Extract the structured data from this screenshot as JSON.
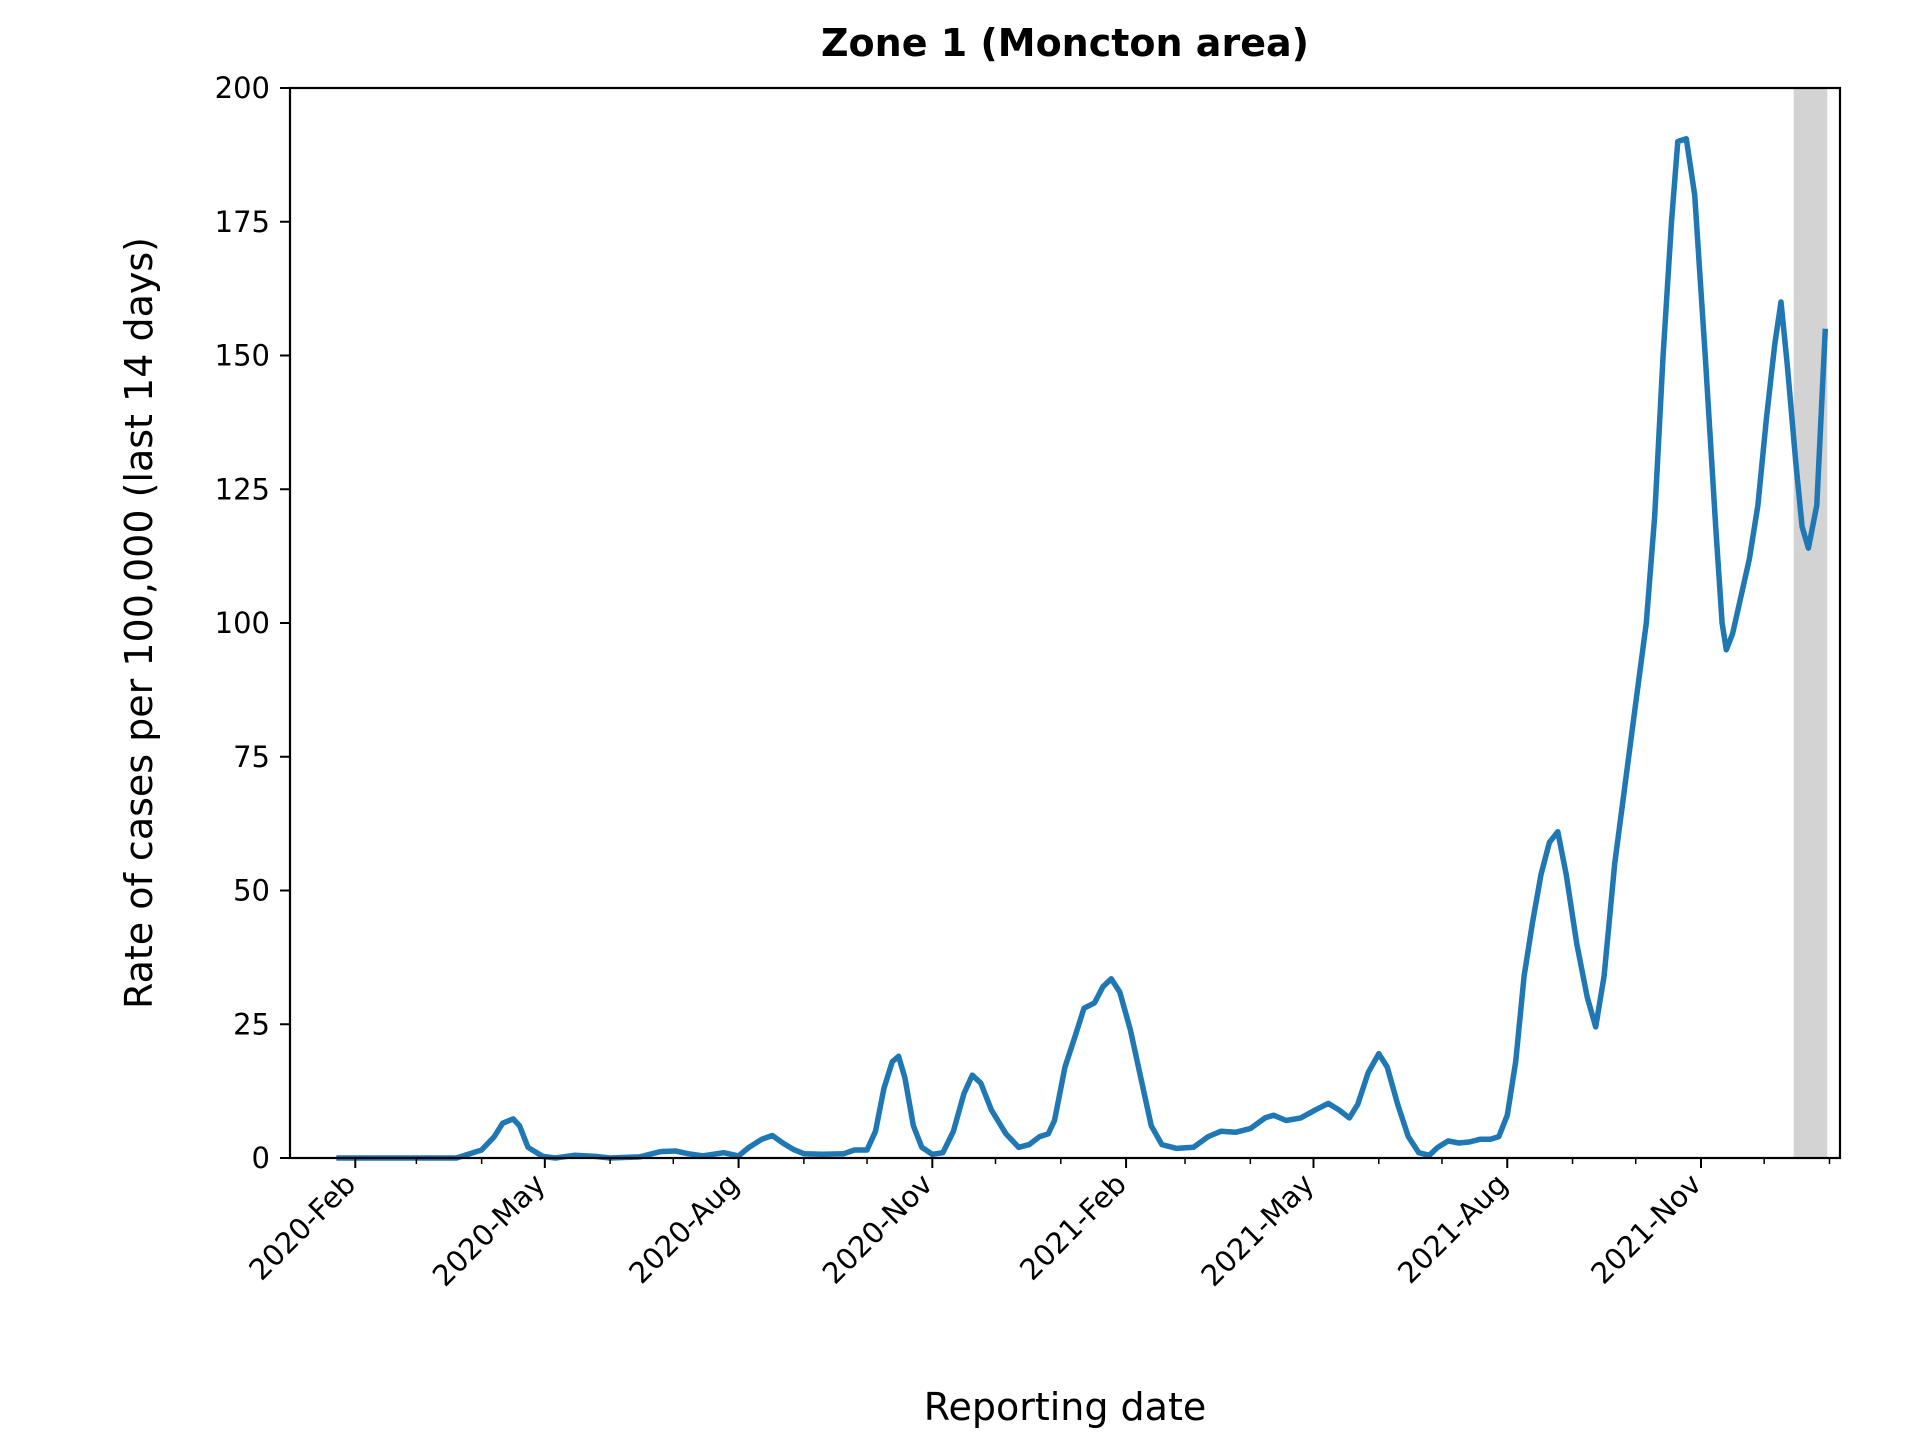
{
  "chart_data": {
    "type": "line",
    "title": "Zone 1 (Moncton area)",
    "xlabel": "Reporting date",
    "ylabel": "Rate of cases per 100,000 (last 14 days)",
    "ylim": [
      0,
      200
    ],
    "yticks": [
      0,
      25,
      50,
      75,
      100,
      125,
      150,
      175,
      200
    ],
    "xlim": [
      "2020-01-01",
      "2022-01-06"
    ],
    "xticks": [
      {
        "date": "2020-02-01",
        "label": "2020-Feb"
      },
      {
        "date": "2020-05-01",
        "label": "2020-May"
      },
      {
        "date": "2020-08-01",
        "label": "2020-Aug"
      },
      {
        "date": "2020-11-01",
        "label": "2020-Nov"
      },
      {
        "date": "2021-02-01",
        "label": "2021-Feb"
      },
      {
        "date": "2021-05-01",
        "label": "2021-May"
      },
      {
        "date": "2021-08-01",
        "label": "2021-Aug"
      },
      {
        "date": "2021-11-01",
        "label": "2021-Nov"
      }
    ],
    "grid": false,
    "shaded_span": {
      "start": "2021-12-15",
      "end": "2021-12-31",
      "color": "#d3d3d3"
    },
    "series": [
      {
        "color": "#1f77b4",
        "points": [
          [
            "2020-01-23",
            0
          ],
          [
            "2020-02-10",
            0
          ],
          [
            "2020-03-05",
            0
          ],
          [
            "2020-03-20",
            0
          ],
          [
            "2020-04-01",
            1.5
          ],
          [
            "2020-04-07",
            4
          ],
          [
            "2020-04-11",
            6.5
          ],
          [
            "2020-04-16",
            7.3
          ],
          [
            "2020-04-19",
            6
          ],
          [
            "2020-04-23",
            2
          ],
          [
            "2020-04-30",
            0.3
          ],
          [
            "2020-05-06",
            0
          ],
          [
            "2020-05-15",
            0.5
          ],
          [
            "2020-05-25",
            0.3
          ],
          [
            "2020-06-01",
            0
          ],
          [
            "2020-06-15",
            0.2
          ],
          [
            "2020-06-25",
            1.2
          ],
          [
            "2020-07-02",
            1.3
          ],
          [
            "2020-07-08",
            0.8
          ],
          [
            "2020-07-15",
            0.4
          ],
          [
            "2020-07-25",
            1
          ],
          [
            "2020-08-01",
            0.4
          ],
          [
            "2020-08-06",
            2
          ],
          [
            "2020-08-12",
            3.5
          ],
          [
            "2020-08-17",
            4.2
          ],
          [
            "2020-08-22",
            2.8
          ],
          [
            "2020-08-27",
            1.6
          ],
          [
            "2020-09-01",
            0.8
          ],
          [
            "2020-09-10",
            0.7
          ],
          [
            "2020-09-20",
            0.8
          ],
          [
            "2020-09-25",
            1.5
          ],
          [
            "2020-10-01",
            1.5
          ],
          [
            "2020-10-05",
            5
          ],
          [
            "2020-10-09",
            13
          ],
          [
            "2020-10-13",
            18
          ],
          [
            "2020-10-16",
            19
          ],
          [
            "2020-10-19",
            15
          ],
          [
            "2020-10-23",
            6
          ],
          [
            "2020-10-27",
            2
          ],
          [
            "2020-11-01",
            0.7
          ],
          [
            "2020-11-06",
            1
          ],
          [
            "2020-11-11",
            5
          ],
          [
            "2020-11-16",
            12
          ],
          [
            "2020-11-20",
            15.5
          ],
          [
            "2020-11-24",
            14
          ],
          [
            "2020-11-29",
            9
          ],
          [
            "2020-12-06",
            4.5
          ],
          [
            "2020-12-12",
            2
          ],
          [
            "2020-12-17",
            2.5
          ],
          [
            "2020-12-22",
            4
          ],
          [
            "2020-12-26",
            4.5
          ],
          [
            "2020-12-29",
            7
          ],
          [
            "2021-01-03",
            17
          ],
          [
            "2021-01-08",
            23
          ],
          [
            "2021-01-12",
            28
          ],
          [
            "2021-01-17",
            29
          ],
          [
            "2021-01-21",
            32
          ],
          [
            "2021-01-25",
            33.5
          ],
          [
            "2021-01-29",
            31
          ],
          [
            "2021-02-03",
            24
          ],
          [
            "2021-02-08",
            15
          ],
          [
            "2021-02-13",
            6
          ],
          [
            "2021-02-18",
            2.5
          ],
          [
            "2021-02-25",
            1.8
          ],
          [
            "2021-03-05",
            2
          ],
          [
            "2021-03-12",
            4
          ],
          [
            "2021-03-18",
            5
          ],
          [
            "2021-03-25",
            4.8
          ],
          [
            "2021-04-01",
            5.5
          ],
          [
            "2021-04-08",
            7.5
          ],
          [
            "2021-04-12",
            8
          ],
          [
            "2021-04-18",
            7
          ],
          [
            "2021-04-25",
            7.5
          ],
          [
            "2021-05-02",
            9
          ],
          [
            "2021-05-08",
            10.2
          ],
          [
            "2021-05-13",
            9
          ],
          [
            "2021-05-18",
            7.5
          ],
          [
            "2021-05-22",
            10
          ],
          [
            "2021-05-27",
            16
          ],
          [
            "2021-06-01",
            19.5
          ],
          [
            "2021-06-05",
            17
          ],
          [
            "2021-06-10",
            10
          ],
          [
            "2021-06-15",
            4
          ],
          [
            "2021-06-20",
            1
          ],
          [
            "2021-06-25",
            0.5
          ],
          [
            "2021-06-29",
            2
          ],
          [
            "2021-07-04",
            3.2
          ],
          [
            "2021-07-09",
            2.8
          ],
          [
            "2021-07-14",
            3
          ],
          [
            "2021-07-19",
            3.5
          ],
          [
            "2021-07-24",
            3.5
          ],
          [
            "2021-07-28",
            4
          ],
          [
            "2021-08-01",
            8
          ],
          [
            "2021-08-05",
            18
          ],
          [
            "2021-08-09",
            34
          ],
          [
            "2021-08-13",
            44
          ],
          [
            "2021-08-17",
            53
          ],
          [
            "2021-08-21",
            59
          ],
          [
            "2021-08-25",
            61
          ],
          [
            "2021-08-29",
            53
          ],
          [
            "2021-09-03",
            40
          ],
          [
            "2021-09-08",
            30
          ],
          [
            "2021-09-12",
            24.5
          ],
          [
            "2021-09-16",
            34
          ],
          [
            "2021-09-21",
            55
          ],
          [
            "2021-09-26",
            70
          ],
          [
            "2021-10-01",
            85
          ],
          [
            "2021-10-06",
            100
          ],
          [
            "2021-10-10",
            120
          ],
          [
            "2021-10-14",
            150
          ],
          [
            "2021-10-18",
            175
          ],
          [
            "2021-10-21",
            190
          ],
          [
            "2021-10-25",
            190.5
          ],
          [
            "2021-10-29",
            180
          ],
          [
            "2021-11-03",
            150
          ],
          [
            "2021-11-08",
            118
          ],
          [
            "2021-11-11",
            100
          ],
          [
            "2021-11-13",
            95
          ],
          [
            "2021-11-16",
            98
          ],
          [
            "2021-11-20",
            105
          ],
          [
            "2021-11-24",
            112
          ],
          [
            "2021-11-28",
            122
          ],
          [
            "2021-12-02",
            138
          ],
          [
            "2021-12-06",
            152
          ],
          [
            "2021-12-09",
            160
          ],
          [
            "2021-12-12",
            148
          ],
          [
            "2021-12-16",
            130
          ],
          [
            "2021-12-19",
            118
          ],
          [
            "2021-12-22",
            114
          ],
          [
            "2021-12-26",
            122
          ],
          [
            "2021-12-30",
            155
          ]
        ]
      }
    ]
  }
}
